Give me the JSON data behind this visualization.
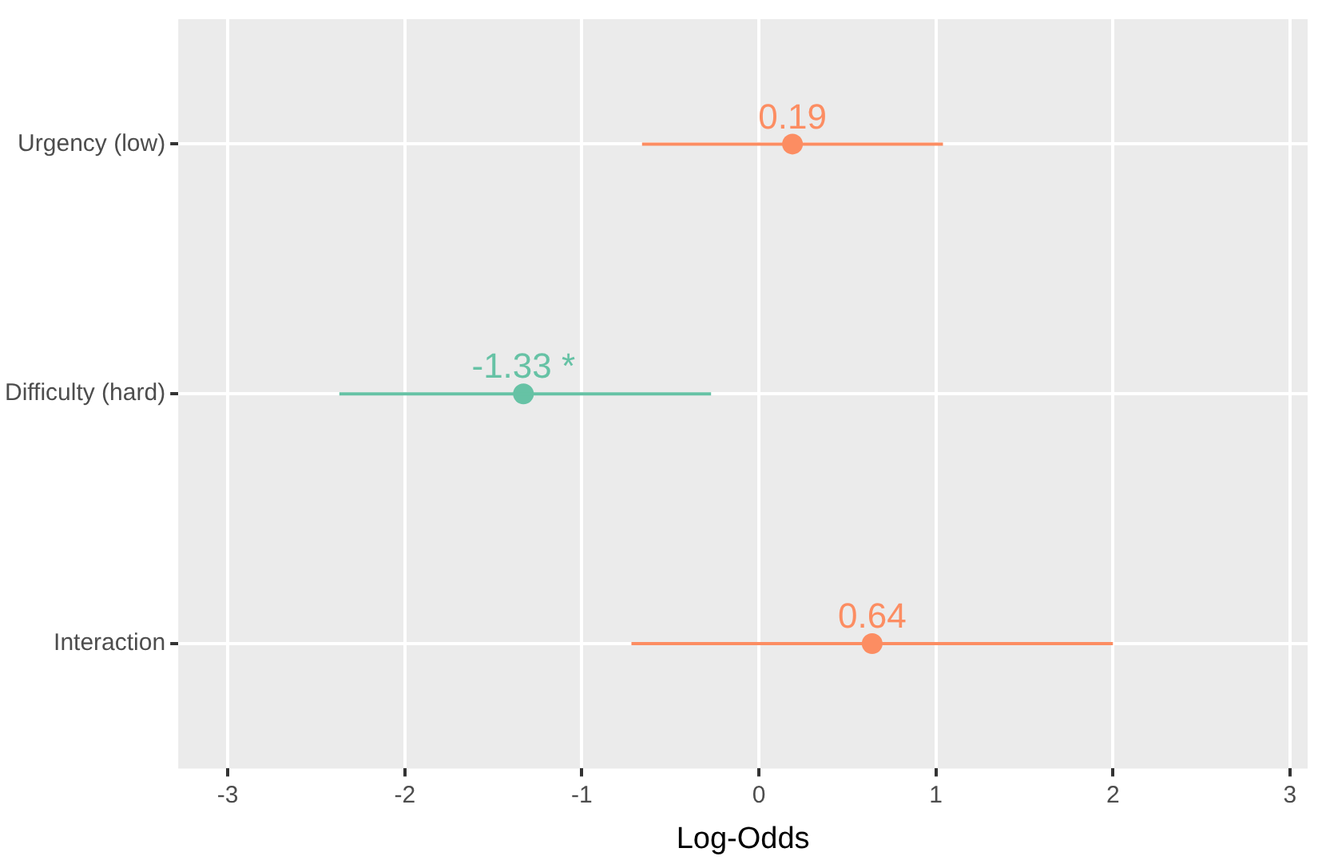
{
  "chart_data": {
    "type": "scatter",
    "orientation": "horizontal",
    "xlabel": "Log-Odds",
    "categories": [
      "Urgency (low)",
      "Difficulty (hard)",
      "Interaction"
    ],
    "values": [
      0.19,
      -1.33,
      0.64
    ],
    "errors": [
      [
        -0.66,
        1.04
      ],
      [
        -2.37,
        -0.27
      ],
      [
        -0.72,
        2.0
      ]
    ],
    "colors": [
      "#fc8d62",
      "#66c2a5",
      "#fc8d62"
    ],
    "value_labels": [
      "0.19",
      "-1.33 *",
      "0.64"
    ],
    "xlim": [
      -3.28,
      3.1
    ],
    "xticks": [
      -3,
      -2,
      -1,
      0,
      1,
      2,
      3
    ],
    "grid": true,
    "legend": false,
    "marker": "circle"
  }
}
